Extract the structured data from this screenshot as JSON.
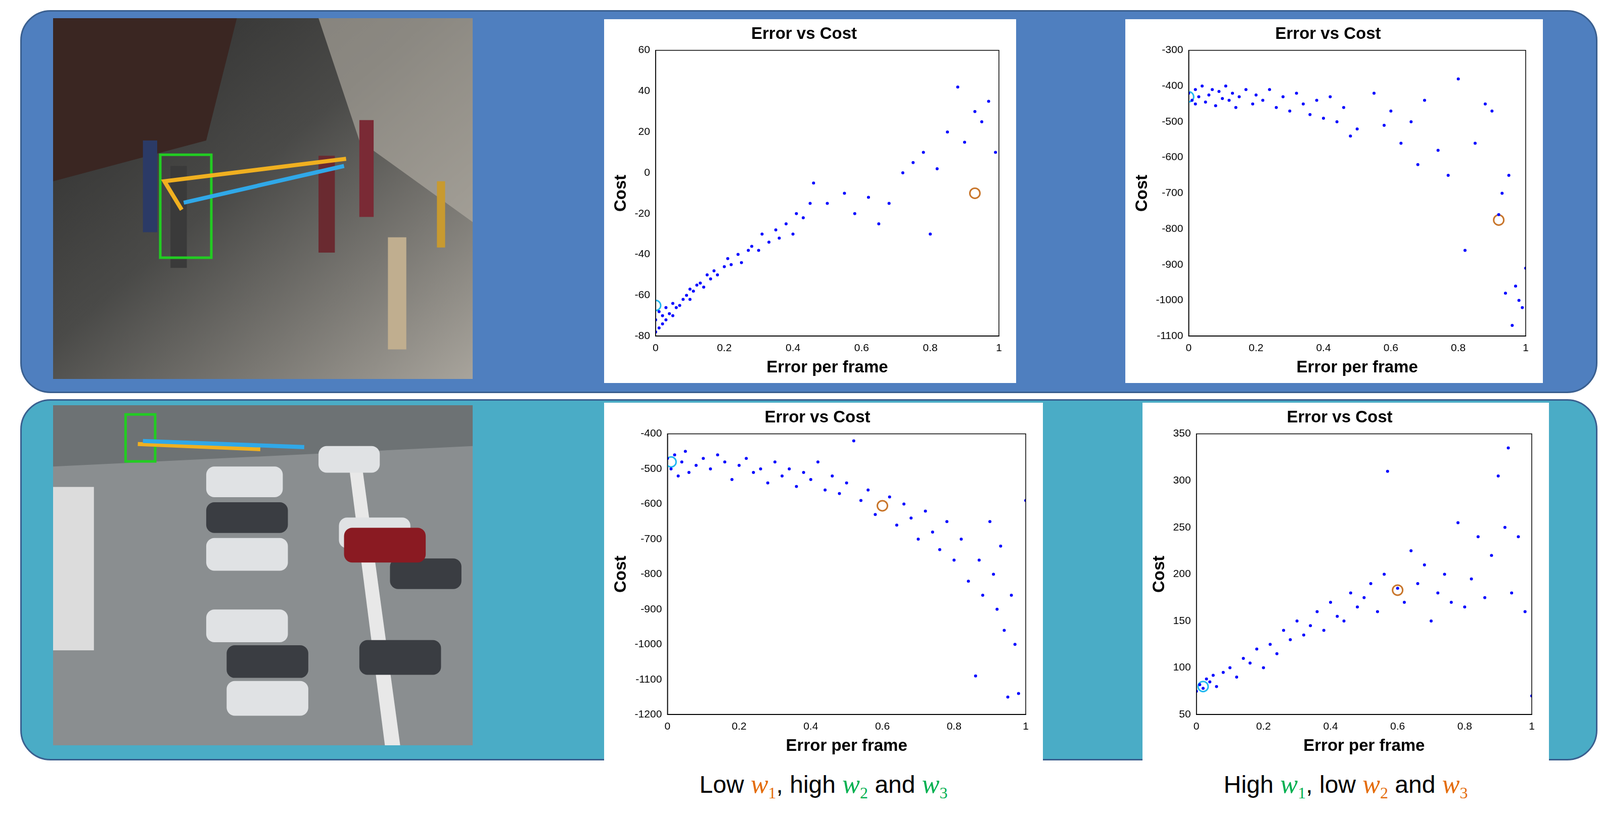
{
  "chart_data": [
    {
      "type": "scatter",
      "title": "Error vs Cost",
      "x_label": "Error per frame",
      "y_label": "Cost",
      "xlim": [
        0,
        1
      ],
      "xticks": [
        0,
        0.2,
        0.4,
        0.6,
        0.8,
        1
      ],
      "ylim": [
        -80,
        60
      ],
      "yticks": [
        -80,
        -60,
        -40,
        -20,
        0,
        20,
        40,
        60
      ],
      "grid": false,
      "series": [
        {
          "color": "#0000ff",
          "marker": "dot",
          "x": [
            0,
            0,
            0.01,
            0.01,
            0.02,
            0.02,
            0.03,
            0.03,
            0.04,
            0.05,
            0.05,
            0.06,
            0.07,
            0.08,
            0.09,
            0.1,
            0.1,
            0.11,
            0.12,
            0.13,
            0.14,
            0.15,
            0.16,
            0.17,
            0.18,
            0.2,
            0.21,
            0.22,
            0.24,
            0.25,
            0.27,
            0.28,
            0.3,
            0.31,
            0.33,
            0.35,
            0.36,
            0.38,
            0.4,
            0.41,
            0.43,
            0.45,
            0.46,
            0.5,
            0.55,
            0.58,
            0.62,
            0.65,
            0.68,
            0.72,
            0.75,
            0.78,
            0.8,
            0.82,
            0.85,
            0.88,
            0.9,
            0.93,
            0.95,
            0.97,
            0.99
          ],
          "values": [
            -78,
            -72,
            -76,
            -68,
            -74,
            -70,
            -72,
            -66,
            -69,
            -70,
            -64,
            -66,
            -65,
            -62,
            -60,
            -62,
            -57,
            -58,
            -55,
            -54,
            -56,
            -50,
            -52,
            -48,
            -50,
            -46,
            -42,
            -45,
            -40,
            -44,
            -38,
            -36,
            -38,
            -30,
            -34,
            -28,
            -32,
            -25,
            -30,
            -20,
            -22,
            -15,
            -5,
            -15,
            -10,
            -20,
            -12,
            -25,
            -15,
            0,
            5,
            10,
            -30,
            2,
            20,
            42,
            15,
            30,
            25,
            35,
            10
          ]
        },
        {
          "color": "#22b8f0",
          "marker": "circle",
          "x": [
            0
          ],
          "values": [
            -65
          ]
        },
        {
          "color": "#c8752a",
          "marker": "circle",
          "x": [
            0.93
          ],
          "values": [
            -10
          ]
        }
      ]
    },
    {
      "type": "scatter",
      "title": "Error vs Cost",
      "x_label": "Error per frame",
      "y_label": "Cost",
      "xlim": [
        0,
        1
      ],
      "xticks": [
        0,
        0.2,
        0.4,
        0.6,
        0.8,
        1
      ],
      "ylim": [
        -1100,
        -300
      ],
      "yticks": [
        -1100,
        -1000,
        -900,
        -800,
        -700,
        -600,
        -500,
        -400,
        -300
      ],
      "grid": false,
      "series": [
        {
          "color": "#0000ff",
          "marker": "dot",
          "x": [
            0,
            0.01,
            0.02,
            0.02,
            0.03,
            0.04,
            0.05,
            0.06,
            0.07,
            0.08,
            0.09,
            0.1,
            0.11,
            0.12,
            0.13,
            0.14,
            0.15,
            0.17,
            0.19,
            0.2,
            0.22,
            0.24,
            0.26,
            0.28,
            0.3,
            0.32,
            0.34,
            0.36,
            0.38,
            0.4,
            0.42,
            0.44,
            0.46,
            0.48,
            0.5,
            0.55,
            0.58,
            0.6,
            0.63,
            0.66,
            0.68,
            0.7,
            0.74,
            0.77,
            0.8,
            0.82,
            0.85,
            0.88,
            0.9,
            0.92,
            0.93,
            0.94,
            0.95,
            0.96,
            0.97,
            0.98,
            0.99,
            1
          ],
          "values": [
            -420,
            -440,
            -410,
            -450,
            -430,
            -400,
            -445,
            -425,
            -410,
            -455,
            -415,
            -435,
            -400,
            -440,
            -420,
            -460,
            -430,
            -410,
            -450,
            -425,
            -440,
            -410,
            -460,
            -430,
            -470,
            -420,
            -450,
            -480,
            -440,
            -490,
            -430,
            -500,
            -460,
            -540,
            -520,
            -420,
            -510,
            -470,
            -560,
            -500,
            -620,
            -440,
            -580,
            -650,
            -380,
            -860,
            -560,
            -450,
            -470,
            -760,
            -700,
            -980,
            -650,
            -1070,
            -960,
            -1000,
            -1020,
            -910
          ]
        },
        {
          "color": "#22b8f0",
          "marker": "circle",
          "x": [
            0
          ],
          "values": [
            -430
          ]
        },
        {
          "color": "#c8752a",
          "marker": "circle",
          "x": [
            0.92
          ],
          "values": [
            -775
          ]
        }
      ]
    },
    {
      "type": "scatter",
      "title": "Error vs Cost",
      "x_label": "Error per frame",
      "y_label": "Cost",
      "xlim": [
        0,
        1
      ],
      "xticks": [
        0,
        0.2,
        0.4,
        0.6,
        0.8,
        1
      ],
      "ylim": [
        -1200,
        -400
      ],
      "yticks": [
        -1200,
        -1100,
        -1000,
        -900,
        -800,
        -700,
        -600,
        -500,
        -400
      ],
      "grid": false,
      "series": [
        {
          "color": "#0000ff",
          "marker": "dot",
          "x": [
            0,
            0.01,
            0.02,
            0.03,
            0.04,
            0.05,
            0.06,
            0.08,
            0.1,
            0.12,
            0.14,
            0.16,
            0.18,
            0.2,
            0.22,
            0.24,
            0.26,
            0.28,
            0.3,
            0.32,
            0.34,
            0.36,
            0.38,
            0.4,
            0.42,
            0.44,
            0.46,
            0.48,
            0.5,
            0.52,
            0.54,
            0.56,
            0.58,
            0.62,
            0.64,
            0.66,
            0.68,
            0.7,
            0.72,
            0.74,
            0.76,
            0.78,
            0.8,
            0.82,
            0.84,
            0.86,
            0.87,
            0.88,
            0.9,
            0.91,
            0.92,
            0.93,
            0.94,
            0.95,
            0.96,
            0.97,
            0.98,
            1
          ],
          "values": [
            -470,
            -500,
            -460,
            -520,
            -480,
            -450,
            -510,
            -490,
            -470,
            -500,
            -460,
            -480,
            -530,
            -490,
            -470,
            -510,
            -500,
            -540,
            -480,
            -520,
            -500,
            -550,
            -510,
            -530,
            -480,
            -560,
            -520,
            -570,
            -540,
            -420,
            -590,
            -560,
            -630,
            -580,
            -660,
            -600,
            -640,
            -700,
            -620,
            -680,
            -730,
            -650,
            -760,
            -700,
            -820,
            -1090,
            -760,
            -860,
            -650,
            -800,
            -900,
            -720,
            -960,
            -1150,
            -860,
            -1000,
            -1140,
            -590
          ]
        },
        {
          "color": "#22b8f0",
          "marker": "circle",
          "x": [
            0.01
          ],
          "values": [
            -480
          ]
        },
        {
          "color": "#c8752a",
          "marker": "circle",
          "x": [
            0.6
          ],
          "values": [
            -605
          ]
        }
      ]
    },
    {
      "type": "scatter",
      "title": "Error vs Cost",
      "x_label": "Error per frame",
      "y_label": "Cost",
      "xlim": [
        0,
        1
      ],
      "xticks": [
        0,
        0.2,
        0.4,
        0.6,
        0.8,
        1
      ],
      "ylim": [
        50,
        350
      ],
      "yticks": [
        50,
        100,
        150,
        200,
        250,
        300,
        350
      ],
      "grid": false,
      "series": [
        {
          "color": "#0000ff",
          "marker": "dot",
          "x": [
            0,
            0.01,
            0.02,
            0.03,
            0.04,
            0.05,
            0.06,
            0.08,
            0.1,
            0.12,
            0.14,
            0.16,
            0.18,
            0.2,
            0.22,
            0.24,
            0.26,
            0.28,
            0.3,
            0.32,
            0.34,
            0.36,
            0.38,
            0.4,
            0.42,
            0.44,
            0.46,
            0.48,
            0.5,
            0.52,
            0.54,
            0.56,
            0.57,
            0.6,
            0.62,
            0.64,
            0.66,
            0.68,
            0.7,
            0.72,
            0.74,
            0.76,
            0.78,
            0.8,
            0.82,
            0.84,
            0.86,
            0.88,
            0.9,
            0.92,
            0.93,
            0.94,
            0.96,
            0.98,
            1
          ],
          "values": [
            75,
            82,
            78,
            88,
            85,
            92,
            80,
            95,
            100,
            90,
            110,
            105,
            120,
            100,
            125,
            115,
            140,
            130,
            150,
            135,
            145,
            160,
            140,
            170,
            155,
            150,
            180,
            165,
            175,
            190,
            160,
            200,
            310,
            185,
            170,
            225,
            190,
            210,
            150,
            180,
            200,
            170,
            255,
            165,
            195,
            240,
            175,
            220,
            305,
            250,
            335,
            180,
            240,
            160,
            70
          ]
        },
        {
          "color": "#22b8f0",
          "marker": "circle",
          "x": [
            0.02
          ],
          "values": [
            80
          ]
        },
        {
          "color": "#c8752a",
          "marker": "circle",
          "x": [
            0.6
          ],
          "values": [
            183
          ]
        }
      ]
    }
  ],
  "captions": [
    [
      {
        "text": "Low "
      },
      {
        "text": "w",
        "sub": "1",
        "color": "#e46c0a"
      },
      {
        "text": ", high "
      },
      {
        "text": "w",
        "sub": "2",
        "color": "#00b050"
      },
      {
        "text": " and "
      },
      {
        "text": "w",
        "sub": "3",
        "color": "#00b050"
      }
    ],
    [
      {
        "text": "High "
      },
      {
        "text": "w",
        "sub": "1",
        "color": "#00b050"
      },
      {
        "text": ", low "
      },
      {
        "text": "w",
        "sub": "2",
        "color": "#e46c0a"
      },
      {
        "text": " and "
      },
      {
        "text": "w",
        "sub": "3",
        "color": "#e46c0a"
      }
    ]
  ]
}
